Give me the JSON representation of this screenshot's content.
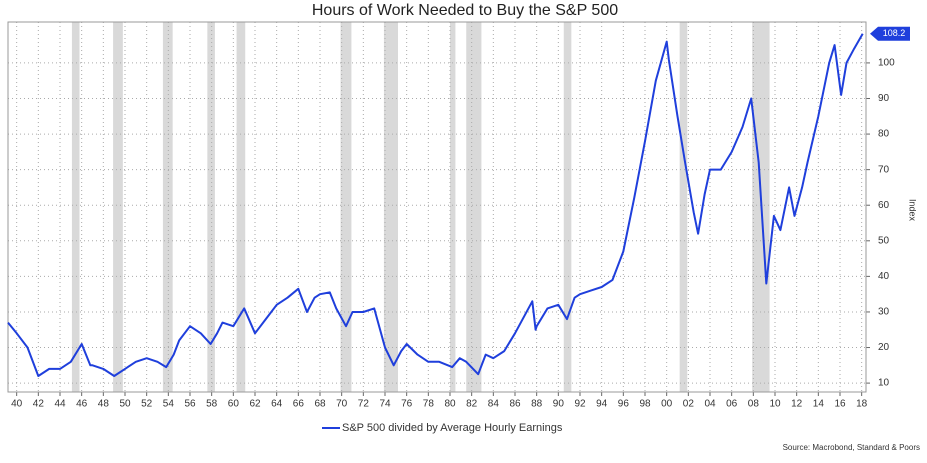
{
  "chart_data": {
    "type": "line",
    "title": "Hours of Work Needed to Buy the S&P 500",
    "y_axis_label": "Index",
    "source": "Source: Macrobond, Standard & Poors",
    "grid": true,
    "legend": "bottom",
    "xlim": [
      1939.2,
      2018.4
    ],
    "ylim": [
      7.5,
      111.5
    ],
    "yticks": [
      10,
      20,
      30,
      40,
      50,
      60,
      70,
      80,
      90,
      100
    ],
    "xticks": [
      {
        "value": 1940,
        "label": "40"
      },
      {
        "value": 1942,
        "label": "42"
      },
      {
        "value": 1944,
        "label": "44"
      },
      {
        "value": 1946,
        "label": "46"
      },
      {
        "value": 1948,
        "label": "48"
      },
      {
        "value": 1950,
        "label": "50"
      },
      {
        "value": 1952,
        "label": "52"
      },
      {
        "value": 1954,
        "label": "54"
      },
      {
        "value": 1956,
        "label": "56"
      },
      {
        "value": 1958,
        "label": "58"
      },
      {
        "value": 1960,
        "label": "60"
      },
      {
        "value": 1962,
        "label": "62"
      },
      {
        "value": 1964,
        "label": "64"
      },
      {
        "value": 1966,
        "label": "66"
      },
      {
        "value": 1968,
        "label": "68"
      },
      {
        "value": 1970,
        "label": "70"
      },
      {
        "value": 1972,
        "label": "72"
      },
      {
        "value": 1974,
        "label": "74"
      },
      {
        "value": 1976,
        "label": "76"
      },
      {
        "value": 1978,
        "label": "78"
      },
      {
        "value": 1980,
        "label": "80"
      },
      {
        "value": 1982,
        "label": "82"
      },
      {
        "value": 1984,
        "label": "84"
      },
      {
        "value": 1986,
        "label": "86"
      },
      {
        "value": 1988,
        "label": "88"
      },
      {
        "value": 1990,
        "label": "90"
      },
      {
        "value": 1992,
        "label": "92"
      },
      {
        "value": 1994,
        "label": "94"
      },
      {
        "value": 1996,
        "label": "96"
      },
      {
        "value": 1998,
        "label": "98"
      },
      {
        "value": 2000,
        "label": "00"
      },
      {
        "value": 2002,
        "label": "02"
      },
      {
        "value": 2004,
        "label": "04"
      },
      {
        "value": 2006,
        "label": "06"
      },
      {
        "value": 2008,
        "label": "08"
      },
      {
        "value": 2010,
        "label": "10"
      },
      {
        "value": 2012,
        "label": "12"
      },
      {
        "value": 2014,
        "label": "14"
      },
      {
        "value": 2016,
        "label": "16"
      },
      {
        "value": 2018,
        "label": "18"
      }
    ],
    "shaded_periods": [
      [
        1945.1,
        1945.8
      ],
      [
        1948.9,
        1949.8
      ],
      [
        1953.5,
        1954.4
      ],
      [
        1957.6,
        1958.3
      ],
      [
        1960.3,
        1961.1
      ],
      [
        1969.9,
        1970.9
      ],
      [
        1973.9,
        1975.2
      ],
      [
        1980.0,
        1980.5
      ],
      [
        1981.5,
        1982.9
      ],
      [
        1990.5,
        1991.2
      ],
      [
        2001.2,
        2001.9
      ],
      [
        2007.9,
        2009.5
      ]
    ],
    "shade_color": "#d9d9d9",
    "x": [
      1939.2,
      1940,
      1941,
      1942,
      1943,
      1944,
      1945,
      1946,
      1946.8,
      1947,
      1948,
      1949,
      1950,
      1951,
      1952,
      1953,
      1953.8,
      1954.5,
      1955,
      1956,
      1957,
      1957.9,
      1958.5,
      1959,
      1960,
      1961,
      1962,
      1963,
      1964,
      1965,
      1966,
      1966.8,
      1967.5,
      1968,
      1968.9,
      1969.5,
      1970.4,
      1971,
      1972,
      1973,
      1974,
      1974.8,
      1975.5,
      1976,
      1977,
      1978,
      1979,
      1980.2,
      1980.9,
      1981.5,
      1982.6,
      1983.3,
      1984,
      1985,
      1986,
      1987.6,
      1987.9,
      1988,
      1989,
      1990,
      1990.8,
      1991.5,
      1992,
      1993,
      1994,
      1995,
      1996,
      1997,
      1998,
      1999,
      2000,
      2000.2,
      2001,
      2001.7,
      2002.5,
      2002.9,
      2003.5,
      2004,
      2005,
      2006,
      2007,
      2007.8,
      2008.5,
      2009.2,
      2009.9,
      2010.5,
      2011.3,
      2011.8,
      2012.5,
      2013,
      2014,
      2015,
      2015.5,
      2016.1,
      2016.6,
      2017.3,
      2018.1
    ],
    "series": [
      {
        "name": "S&P 500 divided by Average Hourly Earnings",
        "color": "#1f3fdc",
        "values": [
          27,
          24,
          20,
          12,
          14,
          14,
          16,
          21,
          15,
          15,
          14,
          12,
          14,
          16,
          17,
          16,
          14.5,
          18,
          22,
          26,
          24,
          21,
          24,
          27,
          26,
          31,
          24,
          28,
          32,
          34,
          36.5,
          30,
          34,
          35,
          35.5,
          31,
          26,
          30,
          30,
          31,
          20,
          15,
          19,
          21,
          18,
          16,
          16,
          14.5,
          17,
          16,
          12.5,
          18,
          17,
          19,
          24,
          33,
          25,
          26,
          31,
          32,
          28,
          34,
          35,
          36,
          37,
          39,
          47,
          62,
          78,
          95,
          106,
          101,
          85,
          72,
          58,
          52,
          63,
          70,
          70,
          75,
          82,
          90,
          72,
          38,
          57,
          53,
          65,
          57,
          65,
          72,
          85,
          100,
          105,
          91,
          100,
          104,
          108.2
        ]
      }
    ]
  }
}
